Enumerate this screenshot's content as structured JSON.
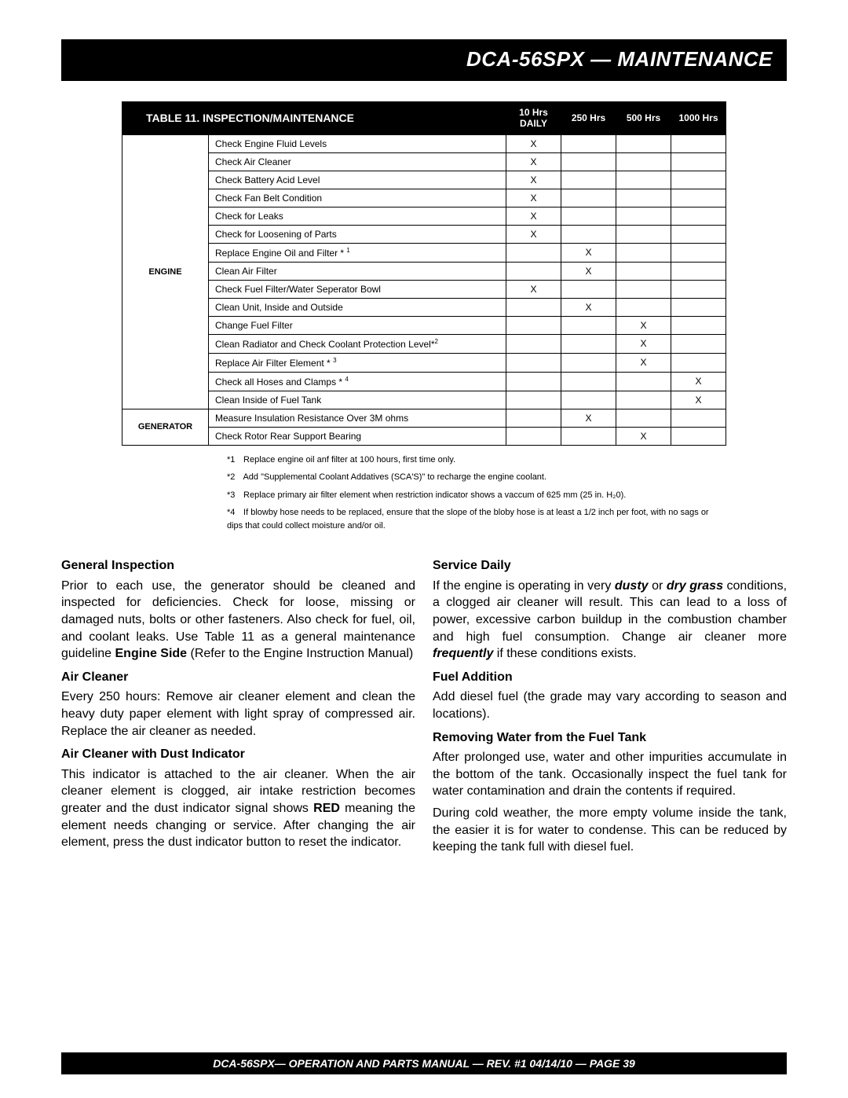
{
  "header": {
    "title": "DCA-56SPX — MAINTENANCE"
  },
  "table": {
    "title": "TABLE 11. INSPECTION/MAINTENANCE",
    "cols": {
      "daily_l1": "10 Hrs",
      "daily_l2": "DAILY",
      "c250": "250 Hrs",
      "c500": "500 Hrs",
      "c1000": "1000 Hrs"
    },
    "categories": [
      {
        "name": "ENGINE",
        "rows": [
          {
            "task": "Check Engine Fluid Levels",
            "marks": [
              "X",
              "",
              "",
              ""
            ]
          },
          {
            "task": "Check Air Cleaner",
            "marks": [
              "X",
              "",
              "",
              ""
            ]
          },
          {
            "task": "Check Battery Acid Level",
            "marks": [
              "X",
              "",
              "",
              ""
            ]
          },
          {
            "task": "Check Fan Belt Condition",
            "marks": [
              "X",
              "",
              "",
              ""
            ]
          },
          {
            "task": "Check for Leaks",
            "marks": [
              "X",
              "",
              "",
              ""
            ]
          },
          {
            "task": "Check for Loosening of Parts",
            "marks": [
              "X",
              "",
              "",
              ""
            ]
          },
          {
            "task": "Replace Engine Oil and Filter * ",
            "sup": "1",
            "marks": [
              "",
              "X",
              "",
              ""
            ]
          },
          {
            "task": "Clean Air Filter",
            "marks": [
              "",
              "X",
              "",
              ""
            ]
          },
          {
            "task": "Check Fuel Filter/Water Seperator Bowl",
            "marks": [
              "X",
              "",
              "",
              ""
            ]
          },
          {
            "task": "Clean Unit, Inside and Outside",
            "marks": [
              "",
              "X",
              "",
              ""
            ]
          },
          {
            "task": "Change Fuel Filter",
            "marks": [
              "",
              "",
              "X",
              ""
            ]
          },
          {
            "task": "Clean Radiator and Check Coolant Protection Level*",
            "sup": "2",
            "marks": [
              "",
              "",
              "X",
              ""
            ]
          },
          {
            "task": "Replace Air Filter Element * ",
            "sup": "3",
            "marks": [
              "",
              "",
              "X",
              ""
            ]
          },
          {
            "task": "Check all Hoses and Clamps * ",
            "sup": "4",
            "marks": [
              "",
              "",
              "",
              "X"
            ]
          },
          {
            "task": "Clean Inside of Fuel Tank",
            "marks": [
              "",
              "",
              "",
              "X"
            ]
          }
        ]
      },
      {
        "name": "GENERATOR",
        "rows": [
          {
            "task": "Measure Insulation Resistance Over 3M ohms",
            "marks": [
              "",
              "X",
              "",
              ""
            ]
          },
          {
            "task": "Check Rotor Rear Support Bearing",
            "marks": [
              "",
              "",
              "X",
              ""
            ]
          }
        ]
      }
    ]
  },
  "footnotes": [
    {
      "num": "*1",
      "text": "Replace engine oil anf filter at 100 hours, first time only."
    },
    {
      "num": "*2",
      "text": "Add \"Supplemental Coolant Addatives (SCA'S)\" to recharge the engine coolant."
    },
    {
      "num": "*3",
      "text": "Replace primary air filter element when restriction indicator shows a vaccum of 625 mm (25 in. H₂0)."
    },
    {
      "num": "*4",
      "text": "If blowby hose needs to be replaced, ensure that the slope of the bloby hose is at least a 1/2 inch per foot, with no sags or dips that could collect moisture and/or oil."
    }
  ],
  "left": {
    "h1": "General Inspection",
    "p1a": "Prior to each use, the generator should be cleaned and inspected for deficiencies. Check for loose, missing or damaged nuts, bolts or other fasteners. Also check for fuel, oil, and coolant leaks. Use Table 11 as a general maintenance guideline ",
    "p1b": "Engine Side",
    "p1c": " (Refer to the Engine Instruction Manual)",
    "h2": "Air Cleaner",
    "p2": "Every 250 hours: Remove air cleaner element and clean the heavy duty paper element with light spray of compressed air. Replace the air cleaner as needed.",
    "h3": "Air Cleaner with Dust Indicator",
    "p3a": "This indicator is attached to the air cleaner. When the air cleaner element is clogged, air intake restriction becomes greater and the dust indicator signal shows ",
    "p3b": "RED",
    "p3c": " meaning the element needs changing or service. After changing the air element, press the dust indicator button to reset the indicator."
  },
  "right": {
    "h1": "Service Daily",
    "p1a": "If the engine is operating in very ",
    "p1b": "dusty",
    "p1c": " or ",
    "p1d": "dry grass",
    "p1e": " conditions, a clogged air cleaner will result. This can lead to a loss of power,  excessive carbon buildup in the combustion chamber  and high fuel consumption. Change air cleaner more ",
    "p1f": "frequently",
    "p1g": " if these conditions exists.",
    "h2": "Fuel Addition",
    "p2": "Add diesel fuel (the grade may vary according to season and locations).",
    "h3": "Removing Water from the Fuel Tank",
    "p3": "After prolonged use, water and other impurities accumulate in the bottom of the tank. Occasionally inspect the fuel tank for water contamination and drain the contents if required.",
    "p4": "During cold weather, the more empty volume inside the tank, the easier it is for water to condense. This can be reduced by keeping the tank full with diesel fuel."
  },
  "footer": {
    "text": "DCA-56SPX— OPERATION AND PARTS MANUAL — REV. #1  04/14/10 — PAGE 39"
  }
}
